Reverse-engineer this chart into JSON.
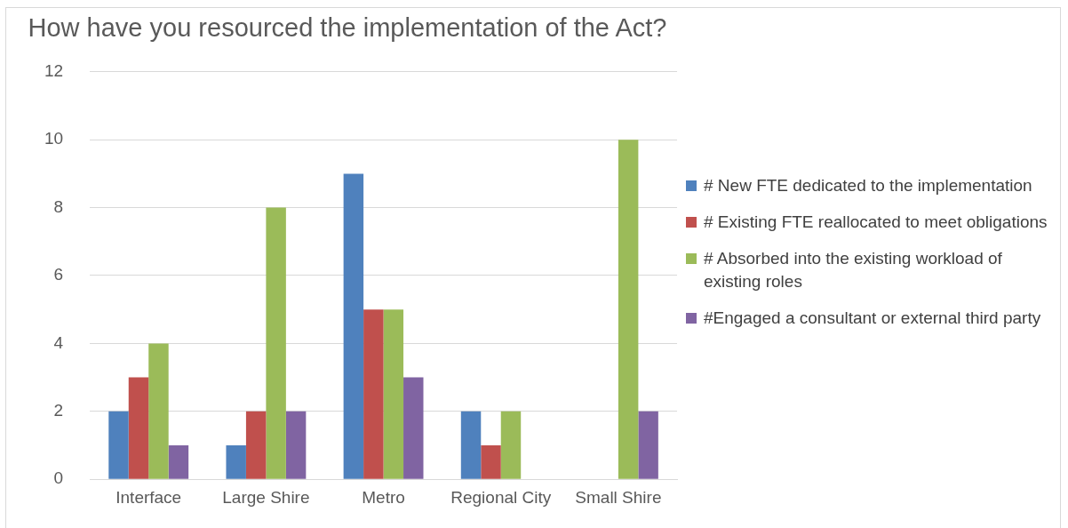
{
  "chart_data": {
    "type": "bar",
    "title": "How have you resourced the implementation of the Act?",
    "categories": [
      "Interface",
      "Large Shire",
      "Metro",
      "Regional City",
      "Small Shire"
    ],
    "series": [
      {
        "name": "# New FTE dedicated to the implementation",
        "color": "#4f81bd",
        "values": [
          2,
          1,
          9,
          2,
          0
        ]
      },
      {
        "name": "# Existing FTE reallocated to meet obligations",
        "color": "#c0504d",
        "values": [
          3,
          2,
          5,
          1,
          0
        ]
      },
      {
        "name": "# Absorbed into the existing workload of existing roles",
        "color": "#9bbb59",
        "values": [
          4,
          8,
          5,
          2,
          10
        ]
      },
      {
        "name": "#Engaged a consultant or external third party",
        "color": "#8064a2",
        "values": [
          1,
          2,
          3,
          0,
          2
        ]
      }
    ],
    "ylim": [
      0,
      12
    ],
    "yticks": [
      0,
      2,
      4,
      6,
      8,
      10,
      12
    ],
    "grid": "y",
    "legend": "right"
  }
}
